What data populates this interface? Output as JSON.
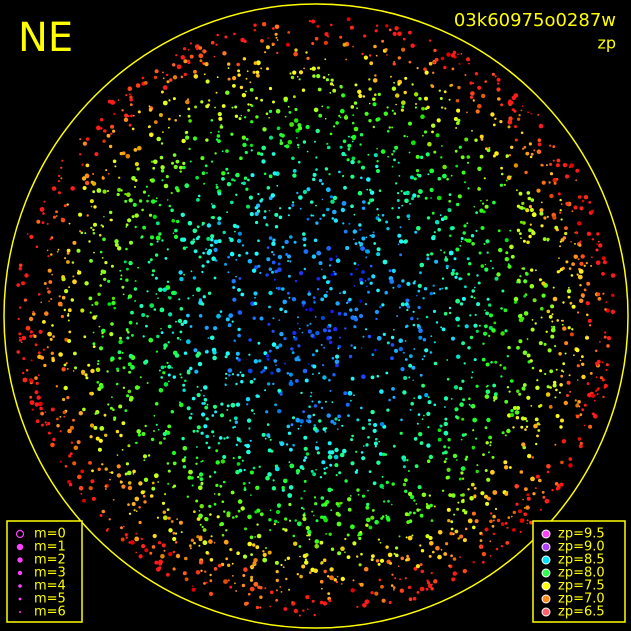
{
  "header": {
    "direction": "NE",
    "image_id": "03k60975o0287w",
    "mode": "zp"
  },
  "magnitude_legend": {
    "items": [
      "m=0",
      "m=1",
      "m=2",
      "m=3",
      "m=4",
      "m=5",
      "m=6"
    ]
  },
  "zp_legend": {
    "items": [
      {
        "label": "zp=9.5",
        "color": "#ff40ff"
      },
      {
        "label": "zp=9.0",
        "color": "#b040ff"
      },
      {
        "label": "zp=8.5",
        "color": "#00e0ff"
      },
      {
        "label": "zp=8.0",
        "color": "#30ff50"
      },
      {
        "label": "zp=7.5",
        "color": "#ffff00"
      },
      {
        "label": "zp=7.0",
        "color": "#ff8c1a"
      },
      {
        "label": "zp=6.5",
        "color": "#ff6070"
      }
    ]
  }
}
